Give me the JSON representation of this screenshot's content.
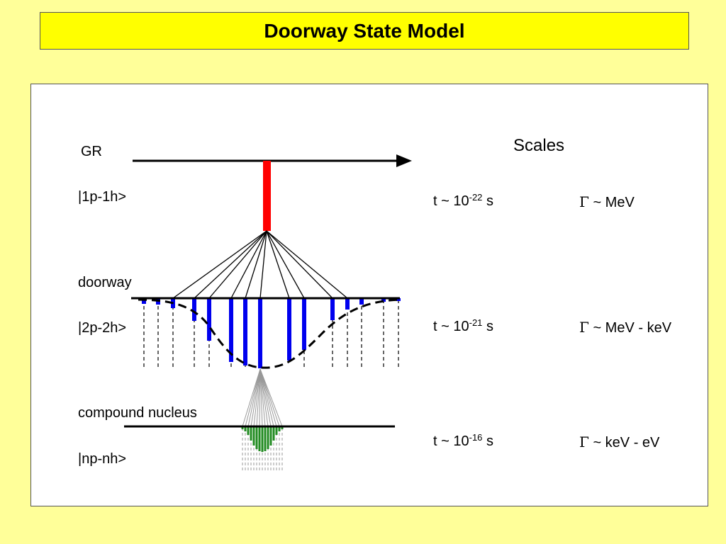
{
  "title": "Doorway State Model",
  "diagram": {
    "levels": {
      "gr": "GR",
      "one_p_one_h": "|1p-1h>",
      "doorway": "doorway",
      "two_p_two_h": "|2p-2h>",
      "compound": "compound nucleus",
      "np_nh": "|np-nh>"
    },
    "scales": {
      "heading": "Scales",
      "rows": [
        {
          "t_prefix": "t ~ 10",
          "t_exp": "-22",
          "t_unit": " s",
          "gamma_symbol": "Γ",
          "gamma_range": " ~ MeV"
        },
        {
          "t_prefix": "t ~ 10",
          "t_exp": "-21",
          "t_unit": " s",
          "gamma_symbol": "Γ",
          "gamma_range": " ~ MeV - keV"
        },
        {
          "t_prefix": "t ~ 10",
          "t_exp": "-16",
          "t_unit": " s",
          "gamma_symbol": "Γ",
          "gamma_range": " ~ keV - eV"
        }
      ]
    },
    "colors": {
      "gr_bar": "#ff0000",
      "doorway_bars": "#0000ee",
      "compound_bars": "#228b22",
      "arrow": "#000000"
    }
  }
}
